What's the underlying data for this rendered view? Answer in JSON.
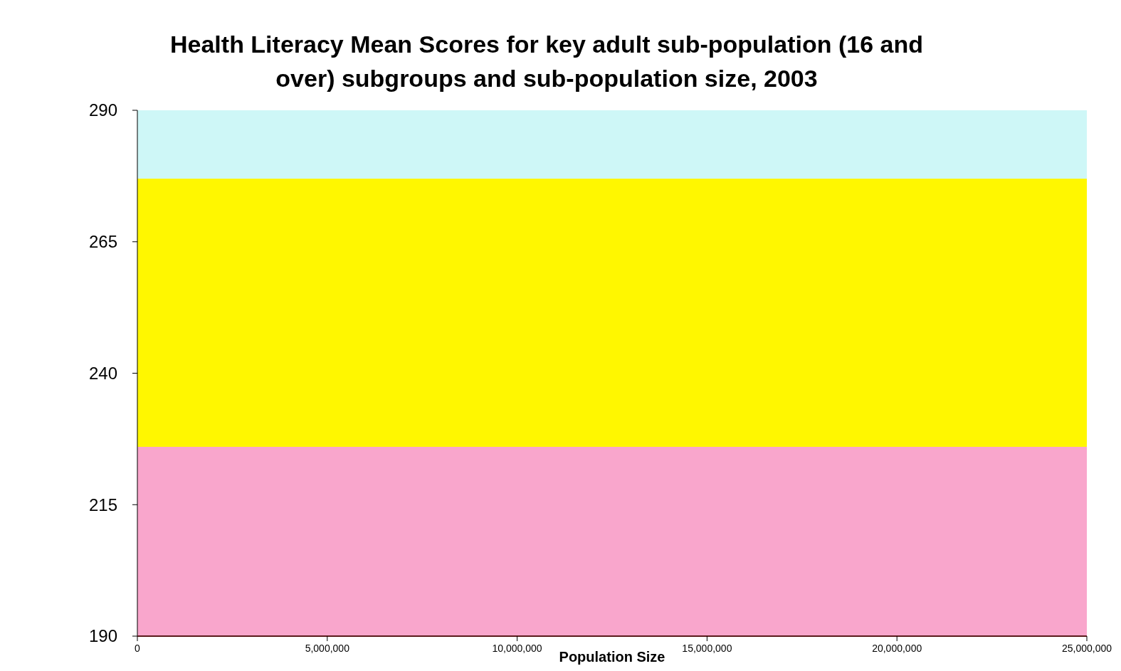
{
  "chart_data": {
    "type": "scatter",
    "title": "Health Literacy Mean Scores for key adult sub-population (16 and over) subgroups and sub-population size, 2003",
    "xlabel": "Population Size",
    "xlim": [
      0,
      25000000
    ],
    "xticks": [
      0,
      {
        "value": 5000000,
        "label": "5,000,000"
      },
      {
        "value": 10000000,
        "label": "10,000,000"
      },
      {
        "value": 15000000,
        "label": "15,000,000"
      },
      {
        "value": 20000000,
        "label": "20,000,000"
      },
      {
        "value": 25000000,
        "label": "25,000,000"
      }
    ],
    "ylim": [
      190,
      290
    ],
    "yticks": [
      190,
      215,
      240,
      265,
      290
    ],
    "bands": [
      {
        "axis": "y",
        "from": 190,
        "to": 226,
        "color": "#f9a6cc"
      },
      {
        "axis": "y",
        "from": 226,
        "to": 277,
        "color": "#fff700"
      },
      {
        "axis": "y",
        "from": 277,
        "to": 290,
        "color": "#cef7f7"
      }
    ]
  }
}
